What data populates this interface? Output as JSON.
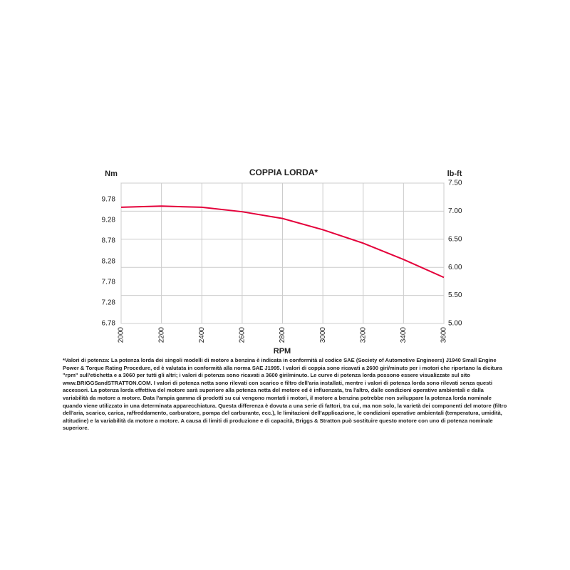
{
  "chart_data": {
    "type": "line",
    "title": "COPPIA LORDA*",
    "y_label": "Nm",
    "y2_label": "lb-ft",
    "x_label": "RPM",
    "x": [
      2000,
      2200,
      2400,
      2600,
      2800,
      3000,
      3200,
      3400,
      3600
    ],
    "xlim": [
      2000,
      3600
    ],
    "xticks": [
      2000,
      2200,
      2400,
      2600,
      2800,
      3000,
      3200,
      3400,
      3600
    ],
    "ylim": [
      6.78,
      10.17
    ],
    "yticks": [
      6.78,
      7.28,
      7.78,
      8.28,
      8.78,
      9.28,
      9.78
    ],
    "y2lim": [
      5,
      7.5
    ],
    "y2ticks": [
      {
        "value": 5,
        "label": "5.00"
      },
      {
        "value": 5.5,
        "label": "5.50"
      },
      {
        "value": 6,
        "label": "6.00"
      },
      {
        "value": 6.5,
        "label": "6.50"
      },
      {
        "value": 7,
        "label": "7.00"
      },
      {
        "value": 7.5,
        "label": "7.50"
      }
    ],
    "grid": true,
    "series": [
      {
        "name": "Coppia lorda",
        "color": "#e4003a",
        "axis": "y2",
        "values": [
          7.07,
          7.09,
          7.07,
          6.99,
          6.87,
          6.67,
          6.43,
          6.14,
          5.82
        ]
      }
    ],
    "footnote": "*Valori di potenza: La potenza lorda dei singoli modelli di motore a benzina è indicata in conformità al codice SAE (Society of Automotive Engineers) J1940 Small Engine Power & Torque Rating Procedure, ed è valutata in conformità alla norma SAE J1995. I valori di coppia sono ricavati a 2600 giri/minuto per i motori che riportano la dicitura \"rpm\" sull'etichetta e a 3060 per tutti gli altri; i valori di potenza sono ricavati a 3600 giri/minuto. Le curve di potenza lorda possono essere visualizzate sul sito www.BRIGGSandSTRATTON.COM. I valori di potenza netta sono rilevati con scarico e filtro dell'aria installati, mentre i valori di potenza lorda sono rilevati senza questi accessori. La potenza lorda effettiva del motore sarà superiore alla potenza netta del motore ed è influenzata, tra l'altro, dalle condizioni operative ambientali e dalla variabilità da motore a motore. Data l'ampia gamma di prodotti su cui vengono montati i motori, il motore a benzina potrebbe non sviluppare la potenza lorda nominale quando viene utilizzato in una determinata apparecchiatura. Questa differenza è dovuta a una serie di fattori, tra cui, ma non solo, la varietà dei componenti del motore (filtro dell'aria, scarico, carica, raffreddamento, carburatore, pompa del carburante, ecc.), le limitazioni dell'applicazione, le condizioni operative ambientali (temperatura, umidità, altitudine) e la variabilità da motore a motore. A causa di limiti di produzione e di capacità, Briggs & Stratton può sostituire questo motore con uno di potenza nominale superiore."
  }
}
